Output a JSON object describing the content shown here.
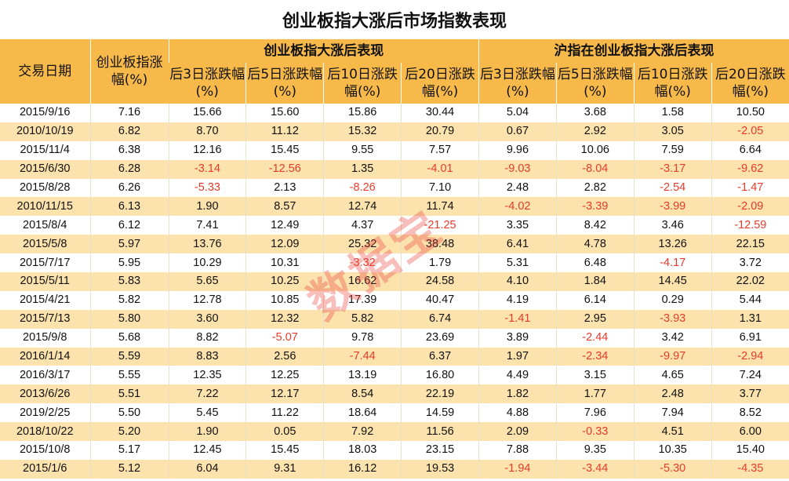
{
  "title": "创业板指大涨后市场指数表现",
  "watermark": "数据宝",
  "header": {
    "date": "交易日期",
    "change": "创业板指涨幅(%)",
    "group_cyb": "创业板指大涨后表现",
    "group_sh": "沪指在创业板指大涨后表现",
    "sub": [
      "后3日涨跌幅(%)",
      "后5日涨跌幅(%)",
      "后10日涨跌幅(%)",
      "后20日涨跌幅(%)",
      "后3日涨跌幅(%)",
      "后5日涨跌幅(%)",
      "后10日涨跌幅(%)",
      "后20日涨跌幅(%)"
    ]
  },
  "rows": [
    [
      "2015/9/16",
      "7.16",
      "15.66",
      "15.60",
      "15.86",
      "30.44",
      "5.04",
      "3.68",
      "1.58",
      "10.50"
    ],
    [
      "2010/10/19",
      "6.82",
      "8.70",
      "11.12",
      "15.32",
      "20.79",
      "0.67",
      "2.92",
      "3.05",
      "-2.05"
    ],
    [
      "2015/11/4",
      "6.38",
      "12.16",
      "15.45",
      "9.55",
      "7.57",
      "9.96",
      "10.06",
      "7.59",
      "6.64"
    ],
    [
      "2015/6/30",
      "6.28",
      "-3.14",
      "-12.56",
      "1.35",
      "-4.01",
      "-9.03",
      "-8.04",
      "-3.17",
      "-9.62"
    ],
    [
      "2015/8/28",
      "6.26",
      "-5.33",
      "2.13",
      "-8.26",
      "7.10",
      "2.48",
      "2.82",
      "-2.54",
      "-1.47"
    ],
    [
      "2010/11/15",
      "6.13",
      "1.90",
      "8.57",
      "12.74",
      "11.74",
      "-4.02",
      "-3.39",
      "-3.99",
      "-2.09"
    ],
    [
      "2015/8/4",
      "6.12",
      "7.41",
      "12.49",
      "4.37",
      "-21.25",
      "3.35",
      "8.42",
      "3.46",
      "-12.59"
    ],
    [
      "2015/5/8",
      "5.97",
      "13.76",
      "12.09",
      "25.32",
      "38.48",
      "6.41",
      "4.78",
      "13.26",
      "22.15"
    ],
    [
      "2015/7/17",
      "5.95",
      "10.29",
      "10.31",
      "-3.32",
      "1.79",
      "5.31",
      "6.48",
      "-4.17",
      "3.72"
    ],
    [
      "2015/5/11",
      "5.83",
      "5.65",
      "10.25",
      "16.62",
      "24.58",
      "4.10",
      "1.84",
      "14.45",
      "22.02"
    ],
    [
      "2015/4/21",
      "5.82",
      "12.78",
      "10.85",
      "17.39",
      "40.47",
      "4.19",
      "6.14",
      "0.29",
      "5.44"
    ],
    [
      "2015/7/13",
      "5.80",
      "3.60",
      "12.32",
      "5.82",
      "6.74",
      "-1.41",
      "2.95",
      "-3.93",
      "1.31"
    ],
    [
      "2015/9/8",
      "5.68",
      "8.82",
      "-5.07",
      "9.78",
      "23.69",
      "3.89",
      "-2.44",
      "3.42",
      "6.91"
    ],
    [
      "2016/1/14",
      "5.59",
      "8.83",
      "2.56",
      "-7.44",
      "6.37",
      "1.97",
      "-2.34",
      "-9.97",
      "-2.94"
    ],
    [
      "2016/3/17",
      "5.55",
      "12.35",
      "12.25",
      "13.19",
      "16.80",
      "4.49",
      "3.15",
      "4.65",
      "7.24"
    ],
    [
      "2013/6/26",
      "5.51",
      "7.22",
      "12.17",
      "8.54",
      "22.19",
      "1.82",
      "1.77",
      "2.48",
      "3.77"
    ],
    [
      "2019/2/25",
      "5.50",
      "5.45",
      "11.22",
      "18.64",
      "14.59",
      "4.88",
      "7.96",
      "7.94",
      "8.52"
    ],
    [
      "2018/10/22",
      "5.20",
      "1.90",
      "0.05",
      "7.92",
      "11.56",
      "2.09",
      "-0.33",
      "4.51",
      "6.00"
    ],
    [
      "2015/10/8",
      "5.17",
      "12.45",
      "15.45",
      "18.03",
      "23.15",
      "7.88",
      "9.35",
      "10.35",
      "15.40"
    ],
    [
      "2015/1/6",
      "5.12",
      "6.04",
      "9.31",
      "16.12",
      "19.53",
      "-1.94",
      "-3.44",
      "-5.30",
      "-4.35"
    ]
  ]
}
